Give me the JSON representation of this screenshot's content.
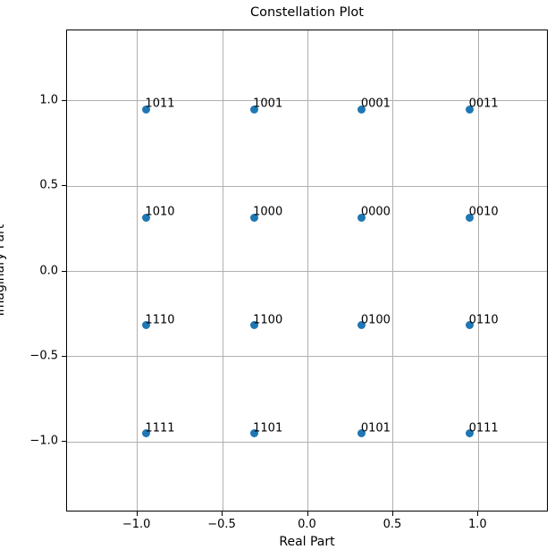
{
  "chart_data": {
    "type": "scatter",
    "title": "Constellation Plot",
    "xlabel": "Real Part",
    "ylabel": "Imaginary Part",
    "xlim": [
      -1.412,
      1.412
    ],
    "ylim": [
      -1.412,
      1.412
    ],
    "grid": true,
    "legend": "none",
    "marker_color": "#1f77b4",
    "grid_color": "#b0b0b0",
    "spine_color": "#000000",
    "xticks": {
      "values": [
        -1.0,
        -0.5,
        0.0,
        0.5,
        1.0
      ],
      "labels": [
        "−1.0",
        "−0.5",
        "0.0",
        "0.5",
        "1.0"
      ]
    },
    "yticks": {
      "values": [
        -1.0,
        -0.5,
        0.0,
        0.5,
        1.0
      ],
      "labels": [
        "−1.0",
        "−0.5",
        "0.0",
        "0.5",
        "1.0"
      ]
    },
    "points": [
      {
        "x": -0.9487,
        "y": 0.9487,
        "label": "1011"
      },
      {
        "x": -0.3162,
        "y": 0.9487,
        "label": "1001"
      },
      {
        "x": 0.3162,
        "y": 0.9487,
        "label": "0001"
      },
      {
        "x": 0.9487,
        "y": 0.9487,
        "label": "0011"
      },
      {
        "x": -0.9487,
        "y": 0.3162,
        "label": "1010"
      },
      {
        "x": -0.3162,
        "y": 0.3162,
        "label": "1000"
      },
      {
        "x": 0.3162,
        "y": 0.3162,
        "label": "0000"
      },
      {
        "x": 0.9487,
        "y": 0.3162,
        "label": "0010"
      },
      {
        "x": -0.9487,
        "y": -0.3162,
        "label": "1110"
      },
      {
        "x": -0.3162,
        "y": -0.3162,
        "label": "1100"
      },
      {
        "x": 0.3162,
        "y": -0.3162,
        "label": "0100"
      },
      {
        "x": 0.9487,
        "y": -0.3162,
        "label": "0110"
      },
      {
        "x": -0.9487,
        "y": -0.9487,
        "label": "1111"
      },
      {
        "x": -0.3162,
        "y": -0.9487,
        "label": "1101"
      },
      {
        "x": 0.3162,
        "y": -0.9487,
        "label": "0101"
      },
      {
        "x": 0.9487,
        "y": -0.9487,
        "label": "0111"
      }
    ]
  }
}
